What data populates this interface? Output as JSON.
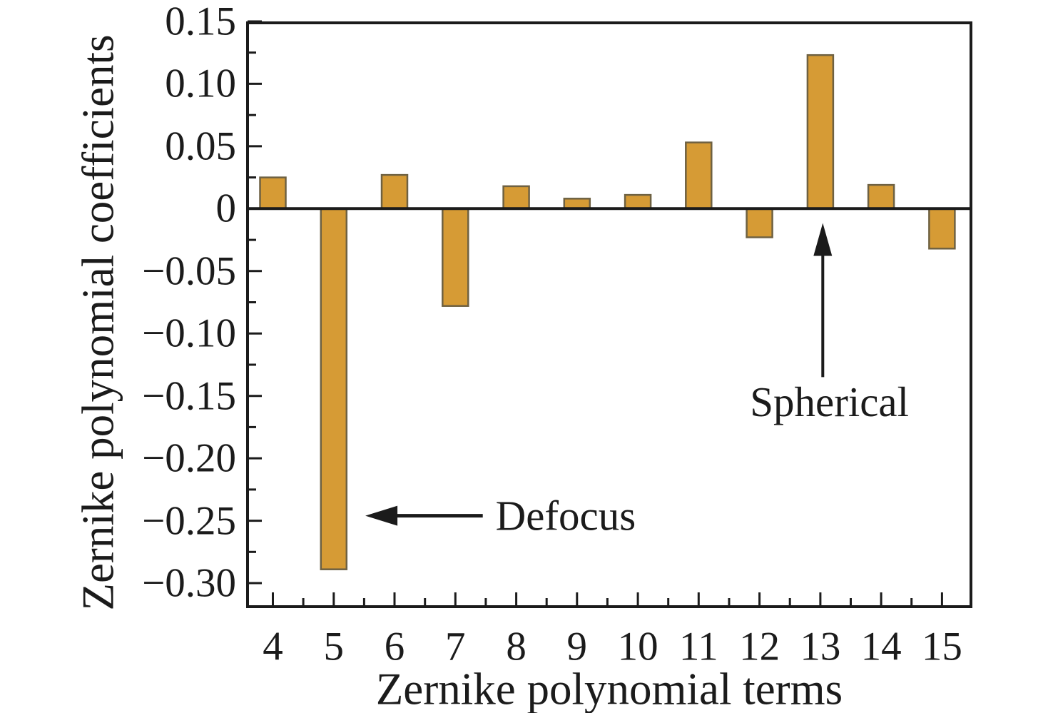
{
  "figure": {
    "background": "#ffffff",
    "bar_fill": "#d69b35",
    "bar_border": "#6e6142",
    "axis_color": "#1b1b1b",
    "text_color": "#1b1b1b"
  },
  "chart_data": {
    "type": "bar",
    "title": "",
    "xlabel": "Zernike polynomial terms",
    "ylabel": "Zernike polynomial coefficients",
    "categories": [
      4,
      5,
      6,
      7,
      8,
      9,
      10,
      11,
      12,
      13,
      14,
      15
    ],
    "values": [
      0.025,
      -0.289,
      0.027,
      -0.078,
      0.018,
      0.008,
      0.011,
      0.053,
      -0.023,
      0.123,
      0.019,
      -0.032
    ],
    "xlim": [
      3.56,
      15.5
    ],
    "ylim": [
      -0.32,
      0.15
    ],
    "y_major_ticks": [
      0.15,
      0.1,
      0.05,
      0,
      -0.05,
      -0.1,
      -0.15,
      -0.2,
      -0.25,
      -0.3
    ],
    "y_tick_labels": [
      "0.15",
      "0.10",
      "0.05",
      "0",
      "−0.05",
      "−0.10",
      "−0.15",
      "−0.20",
      "−0.25",
      "−0.30"
    ],
    "x_tick_labels": [
      "4",
      "5",
      "6",
      "7",
      "8",
      "9",
      "10",
      "11",
      "12",
      "13",
      "14",
      "15"
    ],
    "y_minor_step": 0.025,
    "x_minor_step": 0.5,
    "grid": false,
    "legend": null,
    "annotations": [
      {
        "id": "defocus",
        "text": "Defocus",
        "points_to_term": 5,
        "arrow": {
          "from_x": 7.45,
          "from_y": -0.246,
          "to_x": 5.52,
          "to_y": -0.246
        },
        "label_x": 7.66,
        "label_y": -0.246,
        "align": "left-middle"
      },
      {
        "id": "spherical",
        "text": "Spherical",
        "points_to_term": 13,
        "arrow": {
          "from_x": 13.04,
          "from_y": -0.135,
          "to_x": 13.04,
          "to_y": -0.0115
        },
        "label_x": 13.15,
        "label_y": -0.138,
        "align": "center-top"
      }
    ]
  }
}
